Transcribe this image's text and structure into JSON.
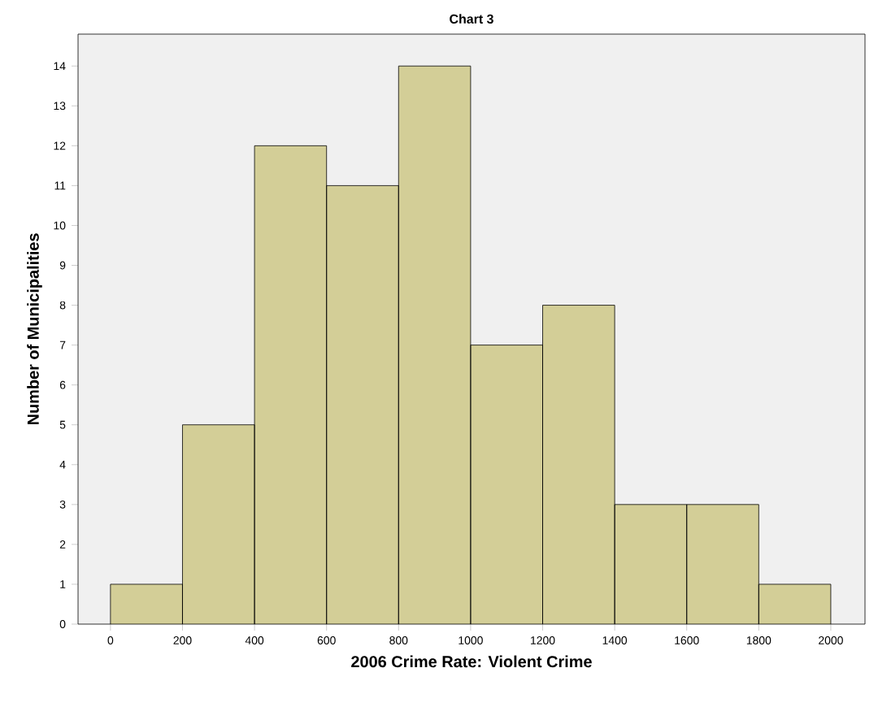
{
  "chart_data": {
    "type": "histogram",
    "title": "Chart 3",
    "xlabel": "2006 Crime Rate: Violent Crime",
    "ylabel": "Number of Municipalities",
    "bins": [
      0,
      200,
      400,
      600,
      800,
      1000,
      1200,
      1400,
      1600,
      1800,
      2000
    ],
    "values": [
      1,
      5,
      12,
      11,
      14,
      7,
      8,
      3,
      3,
      1
    ],
    "color": "#d3ce97",
    "xlim": [
      -90,
      2095
    ],
    "ylim": [
      0,
      14.8
    ],
    "xticks": [
      0,
      200,
      400,
      600,
      800,
      1000,
      1200,
      1400,
      1600,
      1800,
      2000
    ],
    "yticks": [
      0,
      1,
      2,
      3,
      4,
      5,
      6,
      7,
      8,
      9,
      10,
      11,
      12,
      13,
      14
    ],
    "grid": false
  }
}
